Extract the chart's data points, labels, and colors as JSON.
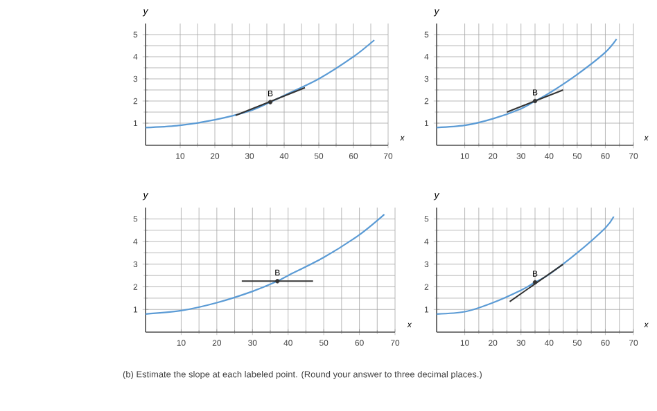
{
  "chart_data": [
    {
      "type": "line",
      "xlabel": "x",
      "ylabel": "y",
      "xlim": [
        0,
        70
      ],
      "ylim": [
        0,
        5.5
      ],
      "xticks": [
        10,
        20,
        30,
        40,
        50,
        60,
        70
      ],
      "yticks": [
        1,
        2,
        3,
        4,
        5
      ],
      "grid": true,
      "series": [
        {
          "type": "line",
          "color": "#5b9bd5",
          "x": [
            0,
            10,
            20,
            30,
            36,
            40,
            50,
            60,
            66
          ],
          "values": [
            0.8,
            0.9,
            1.15,
            1.55,
            1.95,
            2.25,
            3.0,
            4.0,
            4.75
          ]
        },
        {
          "type": "line",
          "color": "#333333",
          "x": [
            26,
            46
          ],
          "values": [
            1.35,
            2.6
          ]
        },
        {
          "type": "scatter",
          "color": "#333333",
          "x": [
            36
          ],
          "values": [
            1.95
          ]
        }
      ],
      "annotations": [
        {
          "text": "B",
          "x": 36,
          "y": 1.95
        }
      ]
    },
    {
      "type": "line",
      "xlabel": "x",
      "ylabel": "y",
      "xlim": [
        0,
        70
      ],
      "ylim": [
        0,
        5.5
      ],
      "xticks": [
        10,
        20,
        30,
        40,
        50,
        60,
        70
      ],
      "yticks": [
        1,
        2,
        3,
        4,
        5
      ],
      "grid": true,
      "series": [
        {
          "type": "line",
          "color": "#5b9bd5",
          "x": [
            0,
            10,
            20,
            30,
            35,
            40,
            50,
            60,
            64
          ],
          "values": [
            0.8,
            0.9,
            1.2,
            1.65,
            2.0,
            2.35,
            3.2,
            4.2,
            4.8
          ]
        },
        {
          "type": "line",
          "color": "#333333",
          "x": [
            25,
            45
          ],
          "values": [
            1.5,
            2.5
          ]
        },
        {
          "type": "scatter",
          "color": "#333333",
          "x": [
            35
          ],
          "values": [
            2.0
          ]
        }
      ],
      "annotations": [
        {
          "text": "B",
          "x": 35,
          "y": 2.0
        }
      ]
    },
    {
      "type": "line",
      "xlabel": "x",
      "ylabel": "y",
      "xlim": [
        0,
        70
      ],
      "ylim": [
        0,
        5.5
      ],
      "xticks": [
        10,
        20,
        30,
        40,
        50,
        60,
        70
      ],
      "yticks": [
        1,
        2,
        3,
        4,
        5
      ],
      "grid": true,
      "series": [
        {
          "type": "line",
          "color": "#5b9bd5",
          "x": [
            0,
            10,
            20,
            30,
            37,
            40,
            50,
            60,
            67
          ],
          "values": [
            0.8,
            0.95,
            1.3,
            1.8,
            2.25,
            2.5,
            3.3,
            4.3,
            5.2
          ]
        },
        {
          "type": "line",
          "color": "#333333",
          "x": [
            27,
            47
          ],
          "values": [
            2.25,
            2.25
          ]
        },
        {
          "type": "scatter",
          "color": "#333333",
          "x": [
            37
          ],
          "values": [
            2.25
          ]
        }
      ],
      "annotations": [
        {
          "text": "B",
          "x": 37,
          "y": 2.25
        }
      ]
    },
    {
      "type": "line",
      "xlabel": "x",
      "ylabel": "y",
      "xlim": [
        0,
        70
      ],
      "ylim": [
        0,
        5.5
      ],
      "xticks": [
        10,
        20,
        30,
        40,
        50,
        60,
        70
      ],
      "yticks": [
        1,
        2,
        3,
        4,
        5
      ],
      "grid": true,
      "series": [
        {
          "type": "line",
          "color": "#5b9bd5",
          "x": [
            0,
            10,
            20,
            30,
            35,
            40,
            50,
            60,
            63
          ],
          "values": [
            0.8,
            0.9,
            1.3,
            1.85,
            2.2,
            2.55,
            3.5,
            4.6,
            5.1
          ]
        },
        {
          "type": "line",
          "color": "#333333",
          "x": [
            26,
            45
          ],
          "values": [
            1.35,
            3.0
          ]
        },
        {
          "type": "scatter",
          "color": "#333333",
          "x": [
            35
          ],
          "values": [
            2.2
          ]
        }
      ],
      "annotations": [
        {
          "text": "B",
          "x": 35,
          "y": 2.2
        }
      ]
    },
    {
      "type": "other",
      "annotations": [
        "(b) Estimate the slope at each labeled point. (Round your answer to three decimal places.)"
      ]
    }
  ]
}
